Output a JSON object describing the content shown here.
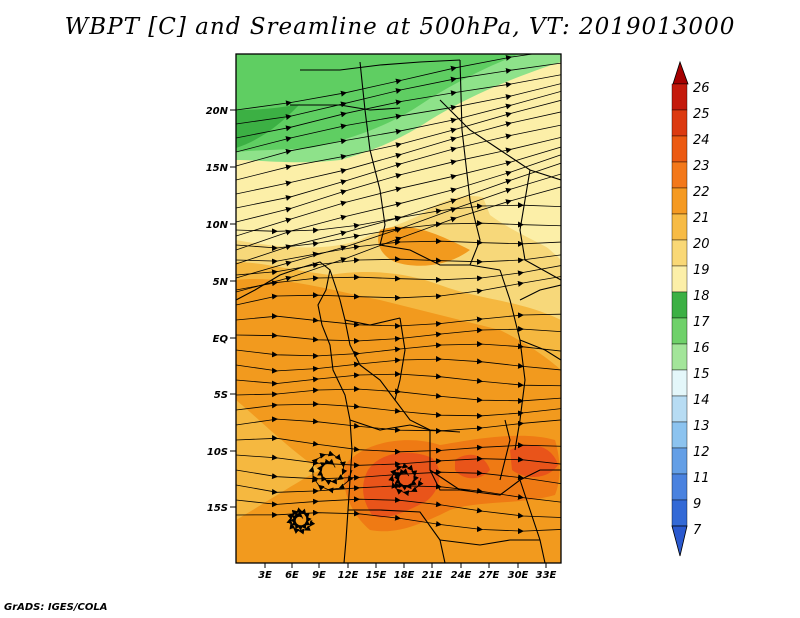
{
  "title": "WBPT [C] and Sreamline at 500hPa, VT: 2019013000",
  "footer": "GrADS: IGES/COLA",
  "map": {
    "lat_labels": [
      "20N",
      "15N",
      "10N",
      "5N",
      "EQ",
      "5S",
      "10S",
      "15S"
    ],
    "lon_labels": [
      "3E",
      "6E",
      "9E",
      "12E",
      "15E",
      "18E",
      "21E",
      "24E",
      "27E",
      "30E",
      "33E"
    ],
    "colors": {
      "c16": "#8ee28a",
      "c17": "#5fce62",
      "c18": "#3cb044",
      "c19": "#fcefa8",
      "c20": "#f7d87a",
      "c21": "#f5b840",
      "c22": "#f29a1e",
      "c23": "#ef7a14",
      "c24": "#e9541a"
    }
  },
  "colorbar": {
    "levels": [
      "26",
      "25",
      "24",
      "23",
      "22",
      "21",
      "20",
      "19",
      "18",
      "17",
      "16",
      "15",
      "14",
      "13",
      "12",
      "11",
      "9",
      "7"
    ],
    "colors": [
      "#a50000",
      "#c41a0c",
      "#dc3a10",
      "#ec5a12",
      "#f3781a",
      "#f59a22",
      "#f7bb45",
      "#f9d876",
      "#fcefa8",
      "#3cb044",
      "#6fd16a",
      "#a3e59a",
      "#e4f7fa",
      "#b7dcf3",
      "#8cc3ef",
      "#649fe6",
      "#4a82df",
      "#3369d6",
      "#2a59cf"
    ]
  }
}
